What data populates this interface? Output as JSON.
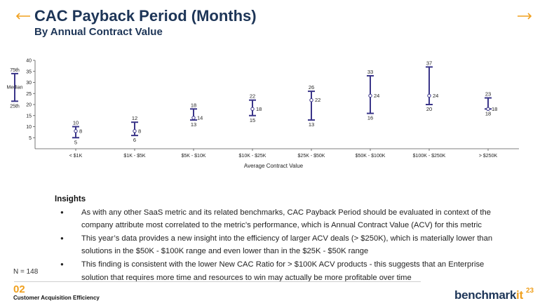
{
  "header": {
    "title": "CAC Payback Period (Months)",
    "subtitle": "By Annual Contract Value"
  },
  "colors": {
    "accent": "#f0a01e",
    "navy": "#1d3557",
    "whisker": "#3a3589"
  },
  "chart_data": {
    "type": "range-plot",
    "xlabel": "Average Contract Value",
    "ylabel": "",
    "ylim": [
      0,
      40
    ],
    "yticks": [
      5,
      10,
      15,
      20,
      25,
      30,
      35,
      40
    ],
    "categories": [
      "< $1K",
      "$1K - $5K",
      "$5K - $10K",
      "$10K - $25K",
      "$25K - $50K",
      "$50K - $100K",
      "$100K - $250K",
      "> $250K"
    ],
    "p75": [
      10,
      12,
      18,
      22,
      26,
      33,
      37,
      23
    ],
    "median": [
      8,
      8,
      14,
      18,
      22,
      24,
      24,
      18
    ],
    "p25": [
      5,
      6,
      13,
      15,
      13,
      16,
      20,
      18
    ],
    "legend": {
      "p75_label": "75th",
      "median_label": "Median",
      "p25_label": "25th"
    }
  },
  "insights": {
    "heading": "Insights",
    "bullets": [
      "As with any other SaaS metric and its related benchmarks, CAC Payback Period should be evaluated in context of the company attribute most correlated to the metric’s performance, which is Annual Contract Value (ACV) for this metric",
      "This year’s data provides a new insight into the efficiency of larger ACV deals (> $250K), which is materially lower than solutions in the $50K - $100K range and even lower than in the $25K - $50K range",
      "This finding is consistent with the lower New CAC Ratio for > $100K ACV products - this suggests that an Enterprise solution that requires more time and resources to win may actually be more profitable over time"
    ]
  },
  "footer": {
    "n_label": "N = 148",
    "section_number": "02",
    "section_name": "Customer Acquisition Efficiency",
    "logo_main": "benchmark",
    "logo_accent": "it",
    "page_number": "23"
  }
}
